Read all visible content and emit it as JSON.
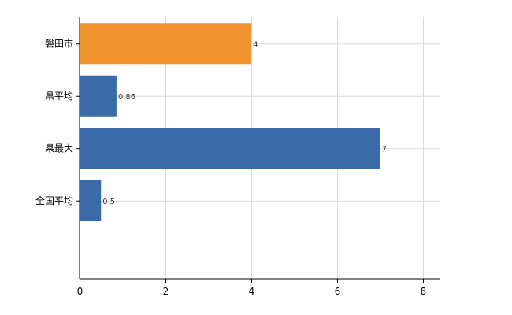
{
  "chart_data": {
    "type": "bar",
    "orientation": "horizontal",
    "categories": [
      "磐田市",
      "県平均",
      "県最大",
      "全国平均"
    ],
    "values": [
      4,
      0.86,
      7,
      0.5
    ],
    "data_labels": [
      "4",
      "0.86",
      "7",
      "0.5"
    ],
    "colors": [
      "#f0922e",
      "#3a6ba8",
      "#3a6ba8",
      "#3a6ba8"
    ],
    "xlim": [
      0,
      8.4
    ],
    "xticks": [
      0,
      2,
      4,
      6,
      8
    ],
    "xtick_labels": [
      "0",
      "2",
      "4",
      "6",
      "8"
    ],
    "grid": true,
    "legend": "none"
  }
}
